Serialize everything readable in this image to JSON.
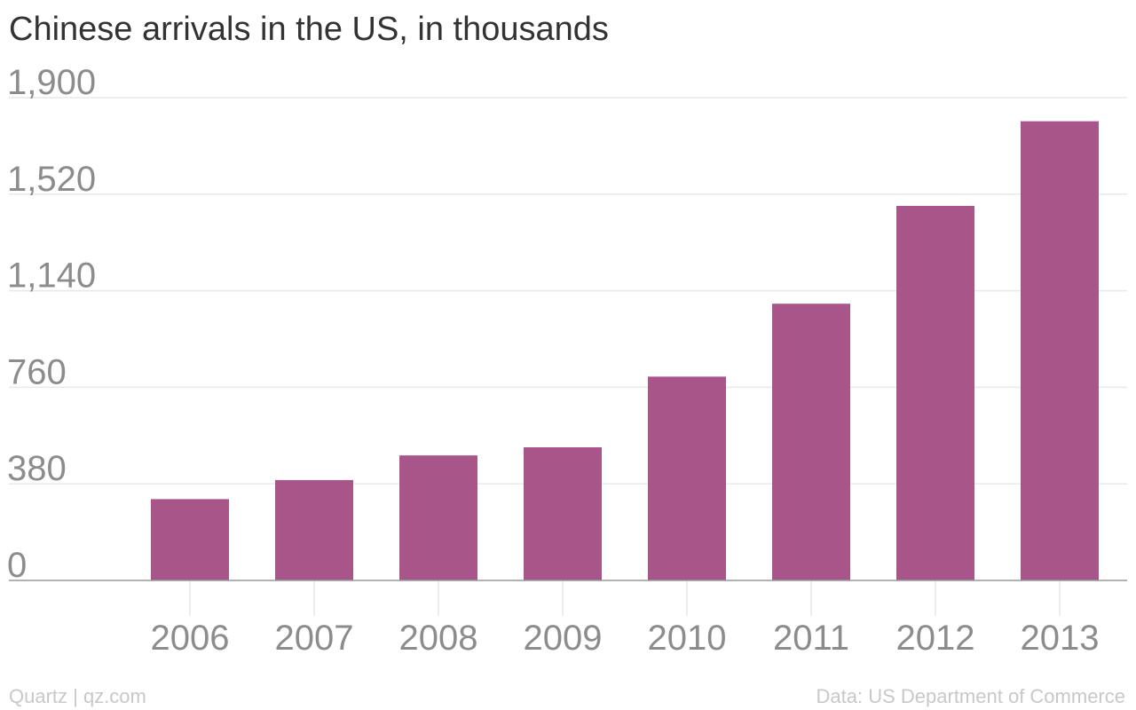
{
  "chart_data": {
    "type": "bar",
    "title": "Chinese arrivals in the US, in thousands",
    "categories": [
      "2006",
      "2007",
      "2008",
      "2009",
      "2010",
      "2011",
      "2012",
      "2013"
    ],
    "values": [
      320,
      395,
      492,
      524,
      802,
      1089,
      1474,
      1807
    ],
    "y_ticks": [
      "0",
      "380",
      "760",
      "1,140",
      "1,520",
      "1,900"
    ],
    "ylim": [
      0,
      1900
    ],
    "grid": true,
    "xlabel": "",
    "ylabel": "",
    "bar_color": "#a8568a"
  },
  "footer": {
    "credit": "Quartz | qz.com",
    "source": "Data: US Department of Commerce"
  },
  "colors": {
    "title": "#333333",
    "tick_text": "#8c8c8c",
    "grid": "#e8e8e8",
    "baseline": "#999999",
    "footer": "#c8c8c8"
  }
}
